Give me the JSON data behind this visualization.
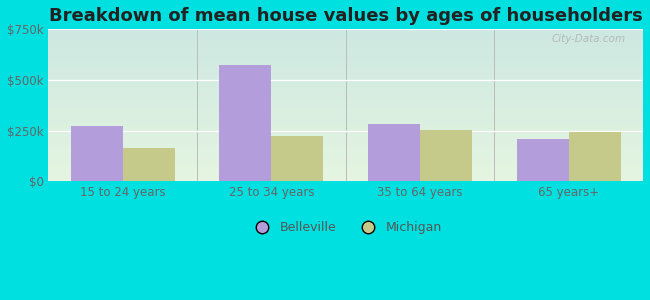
{
  "title": "Breakdown of mean house values by ages of householders",
  "categories": [
    "15 to 24 years",
    "25 to 34 years",
    "35 to 64 years",
    "65 years+"
  ],
  "belleville": [
    275000,
    575000,
    285000,
    210000
  ],
  "michigan": [
    165000,
    225000,
    255000,
    245000
  ],
  "belleville_color": "#b39ddb",
  "michigan_color": "#c5c98a",
  "ylim": [
    0,
    750000
  ],
  "yticks": [
    0,
    250000,
    500000,
    750000
  ],
  "ytick_labels": [
    "$0",
    "$250k",
    "$500k",
    "$750k"
  ],
  "background_color": "#00e0e0",
  "plot_bg_top": "#cde8e2",
  "plot_bg_bottom": "#e5f5e0",
  "title_fontsize": 13,
  "watermark": "City-Data.com",
  "legend_belleville": "Belleville",
  "legend_michigan": "Michigan",
  "bar_width": 0.35
}
